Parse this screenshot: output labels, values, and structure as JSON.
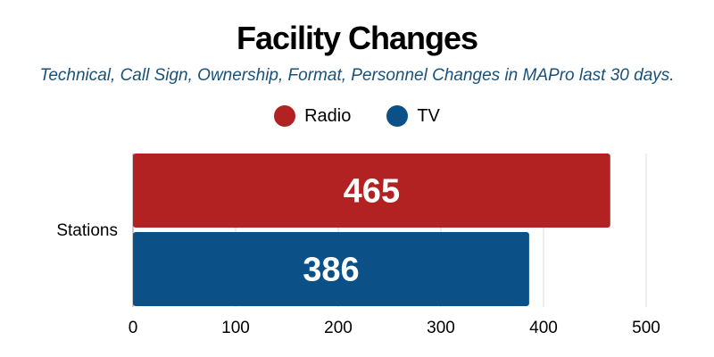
{
  "title": "Facility Changes",
  "subtitle": "Technical, Call Sign, Ownership, Format, Personnel Changes in MAPro last 30 days.",
  "chart_data": {
    "type": "bar",
    "orientation": "horizontal",
    "categories": [
      "Stations"
    ],
    "series": [
      {
        "name": "Radio",
        "values": [
          465
        ],
        "color": "#b22222"
      },
      {
        "name": "TV",
        "values": [
          386
        ],
        "color": "#0b5087"
      }
    ],
    "xlim": [
      0,
      500
    ],
    "xticks": [
      "0",
      "100",
      "200",
      "300",
      "400",
      "500"
    ],
    "legend": "top-center",
    "grid": true
  }
}
